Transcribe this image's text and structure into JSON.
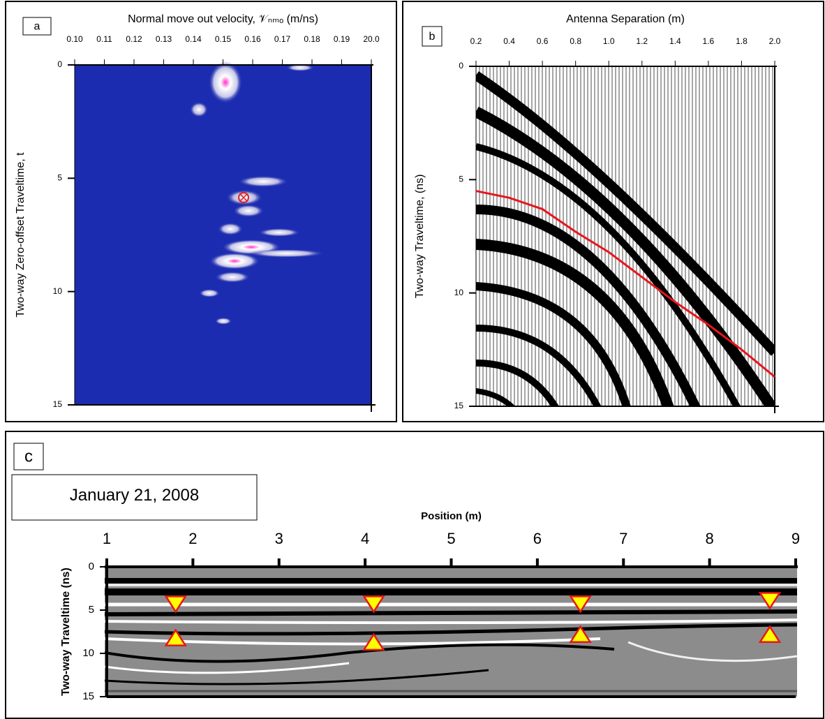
{
  "chart_data": [
    {
      "type": "heatmap",
      "panel_label": "a",
      "xlabel": "Normal move out velocity, 𝒱ₙₘₒ (m/ns)",
      "ylabel": "Two-way Zero-offset Traveltime, t",
      "categories": [
        "0.10",
        "0.11",
        "0.12",
        "0.13",
        "0.14",
        "0.15",
        "0.16",
        "0.17",
        "0.18",
        "0.19",
        "20.0"
      ],
      "ylim": [
        15,
        0
      ],
      "yticks": [
        0,
        5,
        10,
        15
      ]
    },
    {
      "type": "wiggle",
      "panel_label": "b",
      "xlabel": "Antenna Separation (m)",
      "ylabel": "Two-way Traveltime, (ns)",
      "xlim": [
        0.2,
        2.0
      ],
      "xticks": [
        0.2,
        0.4,
        0.6,
        0.8,
        {
          "value": 1,
          "label": "1.0"
        },
        1.2,
        1.4,
        1.6,
        1.8,
        {
          "value": 2,
          "label": "2.0"
        }
      ],
      "ylim": [
        15,
        0
      ],
      "yticks": [
        0,
        5,
        10,
        15
      ],
      "x": [
        0.2,
        0.4,
        0.6,
        0.8,
        1.0,
        1.2,
        1.4,
        1.6,
        1.8,
        2.0
      ],
      "series": [
        {
          "color": "#e8141c",
          "values": [
            5.5,
            5.8,
            6.3,
            7.3,
            8.2,
            9.3,
            10.4,
            11.4,
            12.5,
            13.7
          ]
        }
      ]
    },
    {
      "type": "radargram",
      "panel_label": "c",
      "annotation": "January 21, 2008",
      "xlabel": "Position (m)",
      "ylabel": "Two-way Traveltime (ns)",
      "xlim": [
        1,
        9
      ],
      "xticks": [
        1,
        2,
        3,
        4,
        5,
        6,
        7,
        8,
        9
      ],
      "ylim": [
        15,
        0
      ],
      "yticks": [
        0,
        5,
        10,
        15
      ],
      "series": [
        {
          "marker": "triangle-down",
          "color": "#ffff00",
          "x": [
            1.8,
            4.1,
            6.5,
            8.7
          ],
          "values": [
            4.3,
            4.3,
            4.3,
            3.9
          ]
        },
        {
          "marker": "triangle-up",
          "color": "#ffff00",
          "x": [
            1.8,
            4.1,
            6.5,
            8.7
          ],
          "values": [
            8.2,
            8.7,
            7.8,
            7.8
          ]
        }
      ]
    }
  ]
}
